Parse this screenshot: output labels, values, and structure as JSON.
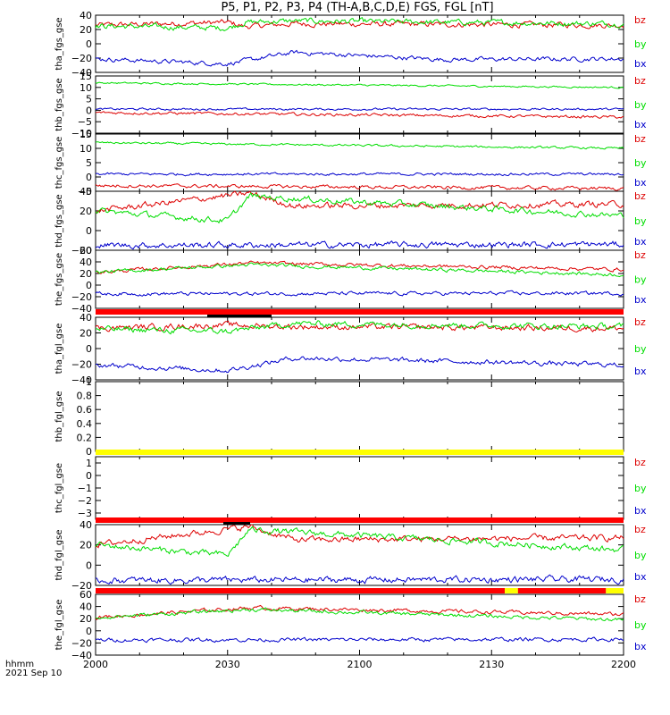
{
  "title": "P5, P1, P2, P3, P4 (TH-A,B,C,D,E) FGS, FGL [nT]",
  "footer": {
    "time_label": "hhmm",
    "date_label": "2021 Sep 10"
  },
  "colors": {
    "bx": "#0000cc",
    "by": "#00dd00",
    "bz": "#dd0000",
    "flag_red": "#ff0000",
    "flag_yellow": "#ffff00",
    "flag_black": "#000000"
  },
  "chart_data": [
    {
      "type": "line",
      "ylabel": "tha_fgs_gse",
      "yticks": [
        40,
        20,
        0,
        -20,
        -40
      ],
      "ylim": [
        -40,
        40
      ],
      "series": [
        {
          "name": "bz",
          "base": 24,
          "noise": 5,
          "x": [
            "2000",
            "2030",
            "2034",
            "2045",
            "2200"
          ],
          "values": [
            26,
            30,
            24,
            28,
            26
          ]
        },
        {
          "name": "by",
          "base": 26,
          "noise": 5,
          "x": [
            "2000",
            "2030",
            "2034",
            "2045",
            "2200"
          ],
          "values": [
            25,
            22,
            30,
            32,
            28
          ]
        },
        {
          "name": "bx",
          "base": -21,
          "noise": 4,
          "x": [
            "2000",
            "2030",
            "2045",
            "2119",
            "2200"
          ],
          "values": [
            -21,
            -28,
            -12,
            -22,
            -21
          ]
        }
      ]
    },
    {
      "type": "line",
      "ylabel": "thb_fgs_gse",
      "yticks": [
        15,
        10,
        5,
        0,
        -5,
        -10
      ],
      "ylim": [
        -10,
        15
      ],
      "series": [
        {
          "name": "by",
          "base": 12,
          "noise": 0.5,
          "x": [
            "2000",
            "2200"
          ],
          "values": [
            12,
            10
          ]
        },
        {
          "name": "bx",
          "base": 0.5,
          "noise": 0.6,
          "x": [
            "2000",
            "2200"
          ],
          "values": [
            0.5,
            0.5
          ]
        },
        {
          "name": "bz",
          "base": -2,
          "noise": 0.8,
          "x": [
            "2000",
            "2200"
          ],
          "values": [
            -1,
            -3
          ]
        }
      ]
    },
    {
      "type": "line",
      "ylabel": "thc_fgs_gse",
      "yticks": [
        15,
        10,
        5,
        0,
        -5
      ],
      "ylim": [
        -5,
        15
      ],
      "series": [
        {
          "name": "by",
          "base": 11,
          "noise": 0.5,
          "x": [
            "2000",
            "2200"
          ],
          "values": [
            12,
            10
          ]
        },
        {
          "name": "bx",
          "base": 1,
          "noise": 0.6,
          "x": [
            "2000",
            "2200"
          ],
          "values": [
            1,
            1
          ]
        },
        {
          "name": "bz",
          "base": -3.5,
          "noise": 0.8,
          "x": [
            "2000",
            "2200"
          ],
          "values": [
            -3,
            -4
          ]
        }
      ]
    },
    {
      "type": "line",
      "ylabel": "thd_fgs_gse",
      "yticks": [
        40,
        20,
        0,
        -20
      ],
      "ylim": [
        -20,
        40
      ],
      "series": [
        {
          "name": "bz",
          "base": 22,
          "noise": 4,
          "x": [
            "2000",
            "2035",
            "2045",
            "2200"
          ],
          "values": [
            20,
            38,
            25,
            27
          ]
        },
        {
          "name": "by",
          "base": 12,
          "noise": 4,
          "x": [
            "2000",
            "2030",
            "2035",
            "2200"
          ],
          "values": [
            20,
            10,
            35,
            15
          ]
        },
        {
          "name": "bx",
          "base": -14,
          "noise": 4,
          "x": [
            "2000",
            "2200"
          ],
          "values": [
            -15,
            -14
          ]
        }
      ]
    },
    {
      "type": "line",
      "ylabel": "the_fgs_gse",
      "yticks": [
        60,
        40,
        20,
        0,
        -20,
        -40
      ],
      "ylim": [
        -40,
        60
      ],
      "series": [
        {
          "name": "bz",
          "base": 24,
          "noise": 4,
          "x": [
            "2000",
            "2035",
            "2200"
          ],
          "values": [
            22,
            38,
            27
          ]
        },
        {
          "name": "by",
          "base": 16,
          "noise": 4,
          "x": [
            "2000",
            "2035",
            "2200"
          ],
          "values": [
            22,
            35,
            18
          ]
        },
        {
          "name": "bx",
          "base": -15,
          "noise": 4,
          "x": [
            "2000",
            "2200"
          ],
          "values": [
            -15,
            -14
          ]
        }
      ]
    },
    {
      "type": "line",
      "ylabel": "tha_fgl_gse",
      "yticks": [
        40,
        20,
        0,
        -20,
        -40
      ],
      "ylim": [
        -40,
        40
      ],
      "series": [
        {
          "name": "bz",
          "base": 24,
          "noise": 5,
          "x": [
            "2000",
            "2030",
            "2045",
            "2200"
          ],
          "values": [
            26,
            30,
            28,
            26
          ]
        },
        {
          "name": "by",
          "base": 26,
          "noise": 5,
          "x": [
            "2000",
            "2030",
            "2045",
            "2200"
          ],
          "values": [
            25,
            22,
            32,
            28
          ]
        },
        {
          "name": "bx",
          "base": -21,
          "noise": 4,
          "x": [
            "2000",
            "2030",
            "2045",
            "2200"
          ],
          "values": [
            -21,
            -28,
            -12,
            -21
          ]
        }
      ]
    },
    {
      "type": "line",
      "ylabel": "thb_fgl_gse",
      "yticks": [
        1.0,
        0.8,
        0.6,
        0.4,
        0.2,
        0.0
      ],
      "ylim": [
        0,
        1
      ],
      "series": []
    },
    {
      "type": "line",
      "ylabel": "thc_fgl_gse",
      "yticks": [
        1,
        0,
        -1,
        -2,
        -3
      ],
      "ylim": [
        -3.5,
        1.5
      ],
      "series": []
    },
    {
      "type": "line",
      "ylabel": "thd_fgl_gse",
      "yticks": [
        40,
        20,
        0,
        -20
      ],
      "ylim": [
        -20,
        40
      ],
      "series": [
        {
          "name": "bz",
          "base": 22,
          "noise": 4,
          "x": [
            "2000",
            "2035",
            "2045",
            "2200"
          ],
          "values": [
            20,
            38,
            25,
            27
          ]
        },
        {
          "name": "by",
          "base": 12,
          "noise": 4,
          "x": [
            "2000",
            "2030",
            "2035",
            "2200"
          ],
          "values": [
            20,
            10,
            35,
            15
          ]
        },
        {
          "name": "bx",
          "base": -14,
          "noise": 4,
          "x": [
            "2000",
            "2200"
          ],
          "values": [
            -15,
            -14
          ]
        }
      ]
    },
    {
      "type": "line",
      "ylabel": "the_fgl_gse",
      "yticks": [
        60,
        40,
        20,
        0,
        -20,
        -40
      ],
      "ylim": [
        -40,
        60
      ],
      "series": [
        {
          "name": "bz",
          "base": 24,
          "noise": 4,
          "x": [
            "2000",
            "2035",
            "2200"
          ],
          "values": [
            22,
            38,
            27
          ]
        },
        {
          "name": "by",
          "base": 16,
          "noise": 4,
          "x": [
            "2000",
            "2035",
            "2200"
          ],
          "values": [
            22,
            35,
            18
          ]
        },
        {
          "name": "bx",
          "base": -15,
          "noise": 4,
          "x": [
            "2000",
            "2200"
          ],
          "values": [
            -15,
            -14
          ]
        }
      ]
    }
  ],
  "xaxis": {
    "ticks": [
      "2000",
      "2030",
      "2100",
      "2130",
      "2200"
    ],
    "range": [
      "2000",
      "2200"
    ]
  },
  "legend": [
    "bz",
    "by",
    "bx"
  ],
  "flag_bars": [
    {
      "after_panel": 4,
      "segments": [
        {
          "from": "2000",
          "to": "2200",
          "color": "red"
        }
      ]
    },
    {
      "after_panel": 6,
      "segments": [
        {
          "from": "2000",
          "to": "2200",
          "color": "yellow"
        }
      ]
    },
    {
      "after_panel": 7,
      "segments": [
        {
          "from": "2000",
          "to": "2200",
          "color": "red"
        }
      ]
    },
    {
      "after_panel": 8,
      "segments": [
        {
          "from": "2000",
          "to": "2133",
          "color": "red"
        },
        {
          "from": "2133",
          "to": "2136",
          "color": "yellow"
        },
        {
          "from": "2136",
          "to": "2156",
          "color": "red"
        },
        {
          "from": "2156",
          "to": "2200",
          "color": "yellow"
        }
      ]
    }
  ]
}
